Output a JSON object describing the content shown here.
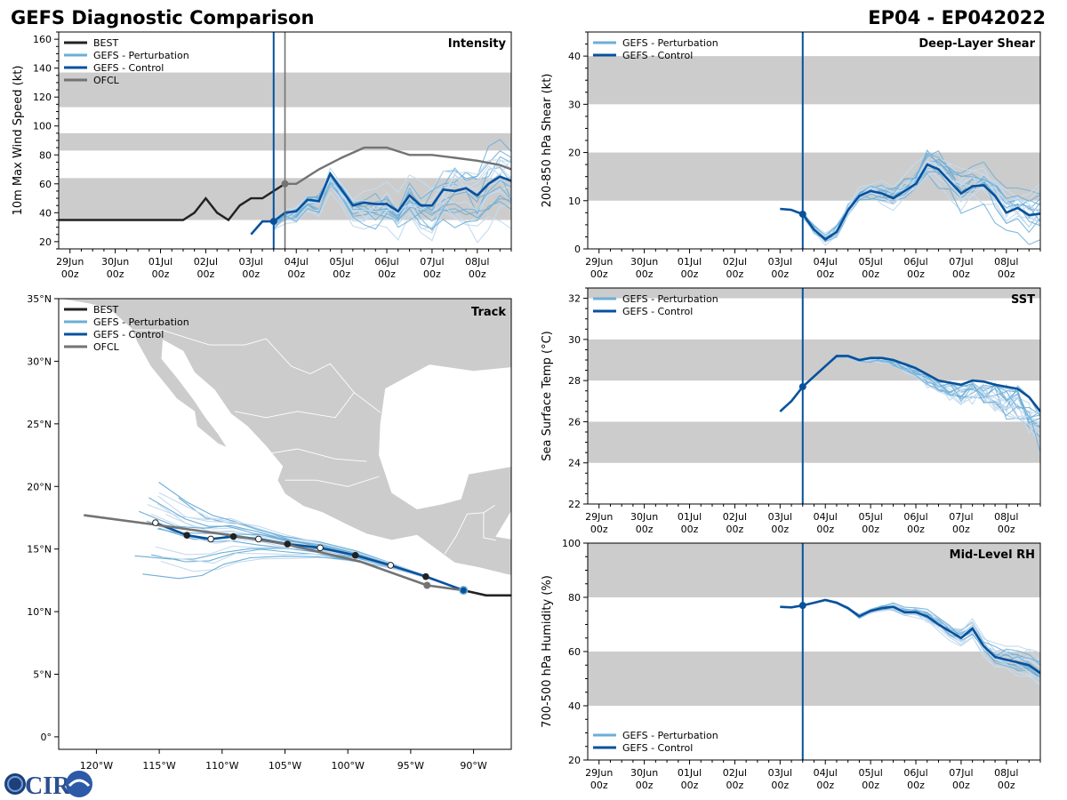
{
  "title_left": "GEFS Diagnostic Comparison",
  "title_right": "EP04 - EP042022",
  "colors": {
    "best": "#222222",
    "perturbation": "#6baed6",
    "perturbation_light": "#c6dbef",
    "control": "#08519c",
    "ofcl": "#737373",
    "band": "#cccccc",
    "land": "#cccccc"
  },
  "logo": {
    "text": "CIRA"
  },
  "time_axis": {
    "ticks": [
      {
        "t": 0,
        "day": "29Jun",
        "hour": "00z"
      },
      {
        "t": 1,
        "day": "30Jun",
        "hour": "00z"
      },
      {
        "t": 2,
        "day": "01Jul",
        "hour": "00z"
      },
      {
        "t": 3,
        "day": "02Jul",
        "hour": "00z"
      },
      {
        "t": 4,
        "day": "03Jul",
        "hour": "00z"
      },
      {
        "t": 5,
        "day": "04Jul",
        "hour": "00z"
      },
      {
        "t": 6,
        "day": "05Jul",
        "hour": "00z"
      },
      {
        "t": 7,
        "day": "06Jul",
        "hour": "00z"
      },
      {
        "t": 8,
        "day": "07Jul",
        "hour": "00z"
      },
      {
        "t": 9,
        "day": "08Jul",
        "hour": "00z"
      }
    ],
    "range_days_since_29Jun_00z": [
      -0.25,
      9.75
    ],
    "init_time_days": 4.5
  },
  "chart_data": [
    {
      "id": "intensity",
      "type": "line",
      "title": "Intensity",
      "ylabel": "10m Max Wind Speed (kt)",
      "ylim": [
        15,
        165
      ],
      "yticks": [
        20,
        40,
        60,
        80,
        100,
        120,
        140,
        160
      ],
      "bands": [
        [
          35,
          64
        ],
        [
          83,
          95
        ],
        [
          113,
          137
        ]
      ],
      "ofcl_time_marker_days": 4.75,
      "legend": [
        "BEST",
        "GEFS - Perturbation",
        "GEFS - Control",
        "OFCL"
      ],
      "series": [
        {
          "name": "BEST",
          "x": [
            -0.25,
            0,
            0.25,
            0.5,
            0.75,
            1,
            1.25,
            1.5,
            1.75,
            2,
            2.25,
            2.5,
            2.75,
            3,
            3.25,
            3.5,
            3.75,
            4,
            4.25,
            4.5,
            4.75
          ],
          "y": [
            35,
            35,
            35,
            35,
            35,
            35,
            35,
            35,
            35,
            35,
            35,
            35,
            40,
            50,
            40,
            35,
            45,
            50,
            50,
            55,
            60
          ]
        },
        {
          "name": "GEFS - Control",
          "x": [
            4,
            4.25,
            4.5,
            4.75,
            5,
            5.25,
            5.5,
            5.75,
            6,
            6.25,
            6.5,
            6.75,
            7,
            7.25,
            7.5,
            7.75,
            8,
            8.25,
            8.5,
            8.75,
            9,
            9.25,
            9.5,
            9.75
          ],
          "y": [
            25,
            34,
            34,
            40,
            41,
            49,
            48,
            67,
            56,
            45,
            47,
            46,
            46,
            41,
            52,
            45,
            45,
            56,
            55,
            57,
            52,
            60,
            65,
            62
          ]
        },
        {
          "name": "OFCL",
          "x": [
            4.75,
            5,
            5.5,
            6,
            6.5,
            7,
            7.5,
            8,
            8.5,
            9,
            9.5,
            9.75
          ],
          "y": [
            60,
            60,
            70,
            78,
            85,
            85,
            80,
            80,
            78,
            76,
            73,
            70
          ]
        }
      ]
    },
    {
      "id": "shear",
      "type": "line",
      "title": "Deep-Layer Shear",
      "ylabel": "200-850 hPa Shear (kt)",
      "ylim": [
        0,
        45
      ],
      "yticks": [
        0,
        10,
        20,
        30,
        40
      ],
      "bands": [
        [
          10,
          20
        ],
        [
          30,
          40
        ]
      ],
      "legend": [
        "GEFS - Perturbation",
        "GEFS - Control"
      ],
      "series": [
        {
          "name": "GEFS - Control",
          "x": [
            4,
            4.25,
            4.5,
            4.75,
            5,
            5.25,
            5.5,
            5.75,
            6,
            6.25,
            6.5,
            6.75,
            7,
            7.25,
            7.5,
            7.75,
            8,
            8.25,
            8.5,
            8.75,
            9,
            9.25,
            9.5,
            9.75
          ],
          "y": [
            8.3,
            8.1,
            7.2,
            4.0,
            2.0,
            3.5,
            8.0,
            11.0,
            12.0,
            11.5,
            10.5,
            12.0,
            13.5,
            17.5,
            16.5,
            14.0,
            11.5,
            13.0,
            13.2,
            11.0,
            7.5,
            8.5,
            7.0,
            7.3
          ]
        }
      ]
    },
    {
      "id": "sst",
      "type": "line",
      "title": "SST",
      "ylabel": "Sea Surface Temp (°C)",
      "ylim": [
        22,
        32.5
      ],
      "yticks": [
        22,
        24,
        26,
        28,
        30,
        32
      ],
      "bands": [
        [
          24,
          26
        ],
        [
          28,
          30
        ],
        [
          32,
          33
        ]
      ],
      "legend": [
        "GEFS - Perturbation",
        "GEFS - Control"
      ],
      "series": [
        {
          "name": "GEFS - Control",
          "x": [
            4,
            4.25,
            4.5,
            4.75,
            5,
            5.25,
            5.5,
            5.75,
            6,
            6.25,
            6.5,
            6.75,
            7,
            7.25,
            7.5,
            7.75,
            8,
            8.25,
            8.5,
            8.75,
            9,
            9.25,
            9.5,
            9.75
          ],
          "y": [
            26.5,
            27.0,
            27.7,
            28.2,
            28.7,
            29.2,
            29.2,
            29.0,
            29.1,
            29.1,
            29.0,
            28.8,
            28.6,
            28.3,
            28.0,
            27.9,
            27.8,
            28.0,
            27.95,
            27.8,
            27.7,
            27.6,
            27.2,
            26.5
          ]
        }
      ]
    },
    {
      "id": "rh",
      "type": "line",
      "title": "Mid-Level RH",
      "ylabel": "700-500 hPa Humidity (%)",
      "ylim": [
        20,
        100
      ],
      "yticks": [
        20,
        40,
        60,
        80,
        100
      ],
      "bands": [
        [
          40,
          60
        ],
        [
          80,
          100
        ]
      ],
      "legend": [
        "GEFS - Perturbation",
        "GEFS - Control"
      ],
      "series": [
        {
          "name": "GEFS - Control",
          "x": [
            4,
            4.25,
            4.5,
            4.75,
            5,
            5.25,
            5.5,
            5.75,
            6,
            6.25,
            6.5,
            6.75,
            7,
            7.25,
            7.5,
            7.75,
            8,
            8.25,
            8.5,
            8.75,
            9,
            9.25,
            9.5,
            9.75
          ],
          "y": [
            76.5,
            76.3,
            77,
            78,
            79,
            78,
            76,
            73,
            75,
            76,
            76.5,
            74.5,
            74.5,
            73,
            70,
            67.5,
            65,
            68.5,
            62,
            58,
            57,
            56,
            55,
            52
          ]
        }
      ]
    },
    {
      "id": "track",
      "type": "scatter",
      "title": "Track",
      "xlim": [
        -123,
        -87
      ],
      "ylim": [
        -1,
        35
      ],
      "xticks": [
        {
          "v": -120,
          "label": "120°W"
        },
        {
          "v": -115,
          "label": "115°W"
        },
        {
          "v": -110,
          "label": "110°W"
        },
        {
          "v": -105,
          "label": "105°W"
        },
        {
          "v": -100,
          "label": "100°W"
        },
        {
          "v": -95,
          "label": "95°W"
        },
        {
          "v": -90,
          "label": "90°W"
        }
      ],
      "yticks": [
        {
          "v": 0,
          "label": "0°"
        },
        {
          "v": 5,
          "label": "5°N"
        },
        {
          "v": 10,
          "label": "10°N"
        },
        {
          "v": 15,
          "label": "15°N"
        },
        {
          "v": 20,
          "label": "20°N"
        },
        {
          "v": 25,
          "label": "25°N"
        },
        {
          "v": 30,
          "label": "30°N"
        },
        {
          "v": 35,
          "label": "35°N"
        }
      ],
      "legend": [
        "BEST",
        "GEFS - Perturbation",
        "GEFS - Control",
        "OFCL"
      ],
      "series": [
        {
          "name": "BEST",
          "lon": [
            -87,
            -89,
            -90.8
          ],
          "lat": [
            11.3,
            11.3,
            11.7
          ]
        },
        {
          "name": "GEFS - Control",
          "lon": [
            -90.8,
            -93.8,
            -96.6,
            -99.4,
            -102.2,
            -104.8,
            -107.1,
            -109.1,
            -110.9,
            -112.8,
            -115.3
          ],
          "lat": [
            11.7,
            12.8,
            13.7,
            14.5,
            15.1,
            15.4,
            15.8,
            16.0,
            15.8,
            16.1,
            17.1
          ]
        },
        {
          "name": "OFCL",
          "lon": [
            -90.8,
            -93.7,
            -99,
            -105,
            -110,
            -115,
            -121
          ],
          "lat": [
            11.7,
            12.1,
            14.0,
            15.4,
            16.2,
            16.9,
            17.7
          ]
        }
      ]
    }
  ]
}
